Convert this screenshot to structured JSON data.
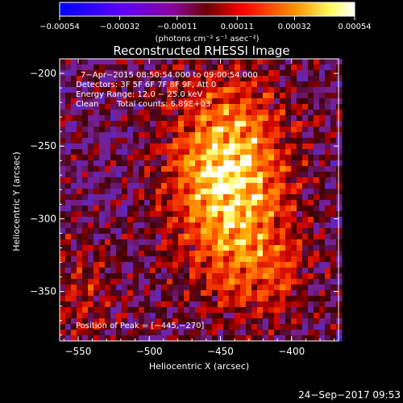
{
  "chart_data": {
    "type": "heatmap",
    "title": "Reconstructed RHESSI Image",
    "xlabel": "Heliocentric X (arcsec)",
    "ylabel": "Heliocentric Y (arcsec)",
    "xlim": [
      -563,
      -367
    ],
    "ylim": [
      -384,
      -190
    ],
    "x_ticks": [
      -550,
      -500,
      -450,
      -400
    ],
    "x_tick_labels": [
      "−550",
      "−500",
      "−450",
      "−400"
    ],
    "y_ticks": [
      -200,
      -250,
      -300,
      -350
    ],
    "y_tick_labels": [
      "−200",
      "−250",
      "−300",
      "−350"
    ],
    "colorbar": {
      "ticks": [
        -0.00054,
        -0.00032,
        -0.00011,
        0.00011,
        0.00032,
        0.00054
      ],
      "tick_labels": [
        "−0.00054",
        "−0.00032",
        "−0.00011",
        "0.00011",
        "0.00032",
        "0.00054"
      ],
      "units": "(photons cm⁻² s⁻¹ asec⁻²)",
      "range": [
        -0.00054,
        0.00054
      ],
      "colors": [
        "#0000ff",
        "#7f00ff",
        "#8b1a00",
        "#ff0000",
        "#ff9000",
        "#ffff80",
        "#ffffff"
      ]
    },
    "annotations": [
      "7−Apr−2015 08:50:54.000 to 09:00:54.000",
      "Detectors: 3F 5F 6F 7F 8F 9F, Att 0",
      "Energy Range: 12.0 − 25.0 keV",
      "Clean",
      "Total counts: 6.89E+03"
    ],
    "peak_label": "Position of Peak = [−445,−270]",
    "peak": [
      -445,
      -270
    ],
    "timestamp": "24−Sep−2017 09:53"
  }
}
